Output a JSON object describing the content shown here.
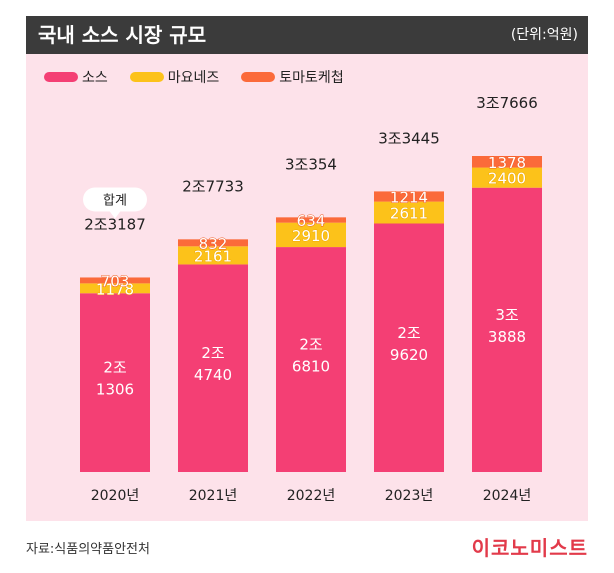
{
  "header": {
    "title": "국내 소스 시장 규모",
    "unit": "(단위:억원)"
  },
  "colors": {
    "sauce": "#f43f74",
    "mayo": "#fcc21a",
    "ketchup": "#fb6a3a",
    "background": "#fde2ea"
  },
  "footer": {
    "source": "자료:식품의약품안전처",
    "brand": "이코노미스트"
  },
  "chart_data": {
    "type": "bar",
    "stacked": true,
    "categories": [
      "2020년",
      "2021년",
      "2022년",
      "2023년",
      "2024년"
    ],
    "series": [
      {
        "name": "소스",
        "values": [
          21306,
          24740,
          26810,
          29620,
          33888
        ],
        "labels": [
          "2조\n1306",
          "2조\n4740",
          "2조\n6810",
          "2조\n9620",
          "3조\n3888"
        ]
      },
      {
        "name": "마요네즈",
        "values": [
          1178,
          2161,
          2910,
          2611,
          2400
        ]
      },
      {
        "name": "토마토케첩",
        "values": [
          703,
          832,
          634,
          1214,
          1378
        ]
      }
    ],
    "totals": [
      23187,
      27733,
      30354,
      33445,
      37666
    ],
    "total_labels": [
      "2조3187",
      "2조7733",
      "3조354",
      "3조3445",
      "3조7666"
    ],
    "total_callout": "합계",
    "ylim": [
      0,
      37666
    ],
    "grid": false,
    "legend_position": "top-left"
  }
}
